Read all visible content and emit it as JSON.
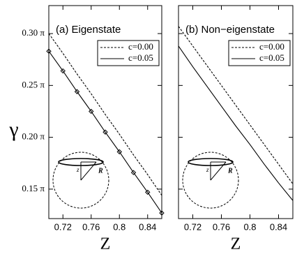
{
  "chart_data": [
    {
      "type": "line",
      "title": "(a) Eigenstate",
      "xlabel": "Z",
      "ylabel": "γ",
      "x": [
        0.7,
        0.72,
        0.74,
        0.76,
        0.78,
        0.8,
        0.82,
        0.84,
        0.86
      ],
      "series": [
        {
          "name": "c=0.00",
          "color": "#000000",
          "dash": true,
          "values": [
            0.3,
            0.281,
            0.261,
            0.242,
            0.222,
            0.203,
            0.183,
            0.164,
            0.144
          ]
        },
        {
          "name": "c=0.05",
          "color": "#000000",
          "dash": false,
          "marker": "diamond",
          "values": [
            0.283,
            0.264,
            0.244,
            0.225,
            0.205,
            0.186,
            0.166,
            0.147,
            0.127
          ]
        }
      ],
      "xlim": [
        0.7,
        0.86
      ],
      "xticks": [
        0.72,
        0.76,
        0.8,
        0.84
      ],
      "ylim": [
        0.1216,
        0.327
      ],
      "yticks": [
        {
          "value": 0.15,
          "label": "0.15 π"
        },
        {
          "value": 0.2,
          "label": "0.20 π"
        },
        {
          "value": 0.25,
          "label": "0.25 π"
        },
        {
          "value": 0.3,
          "label": "0.30 π"
        }
      ],
      "legend": "upper right",
      "inset": {
        "labels": [
          "z",
          "R"
        ]
      }
    },
    {
      "type": "line",
      "title": "(b) Non−eigenstate",
      "xlabel": "Z",
      "x": [
        0.7,
        0.72,
        0.74,
        0.76,
        0.78,
        0.8,
        0.82,
        0.84,
        0.86
      ],
      "series": [
        {
          "name": "c=0.00",
          "color": "#000000",
          "dash": true,
          "values": [
            0.307,
            0.288,
            0.269,
            0.25,
            0.231,
            0.212,
            0.193,
            0.174,
            0.155
          ]
        },
        {
          "name": "c=0.05",
          "color": "#000000",
          "dash": false,
          "values": [
            0.288,
            0.268,
            0.249,
            0.23,
            0.211,
            0.193,
            0.174,
            0.156,
            0.139
          ]
        }
      ],
      "xlim": [
        0.7,
        0.86
      ],
      "xticks": [
        0.72,
        0.76,
        0.8,
        0.84
      ],
      "ylim": [
        0.1216,
        0.327
      ],
      "yticks": [
        0.15,
        0.2,
        0.25,
        0.3
      ],
      "ytick_labels": false,
      "legend": "upper right",
      "inset": {
        "labels": [
          "z",
          "R"
        ]
      }
    }
  ]
}
